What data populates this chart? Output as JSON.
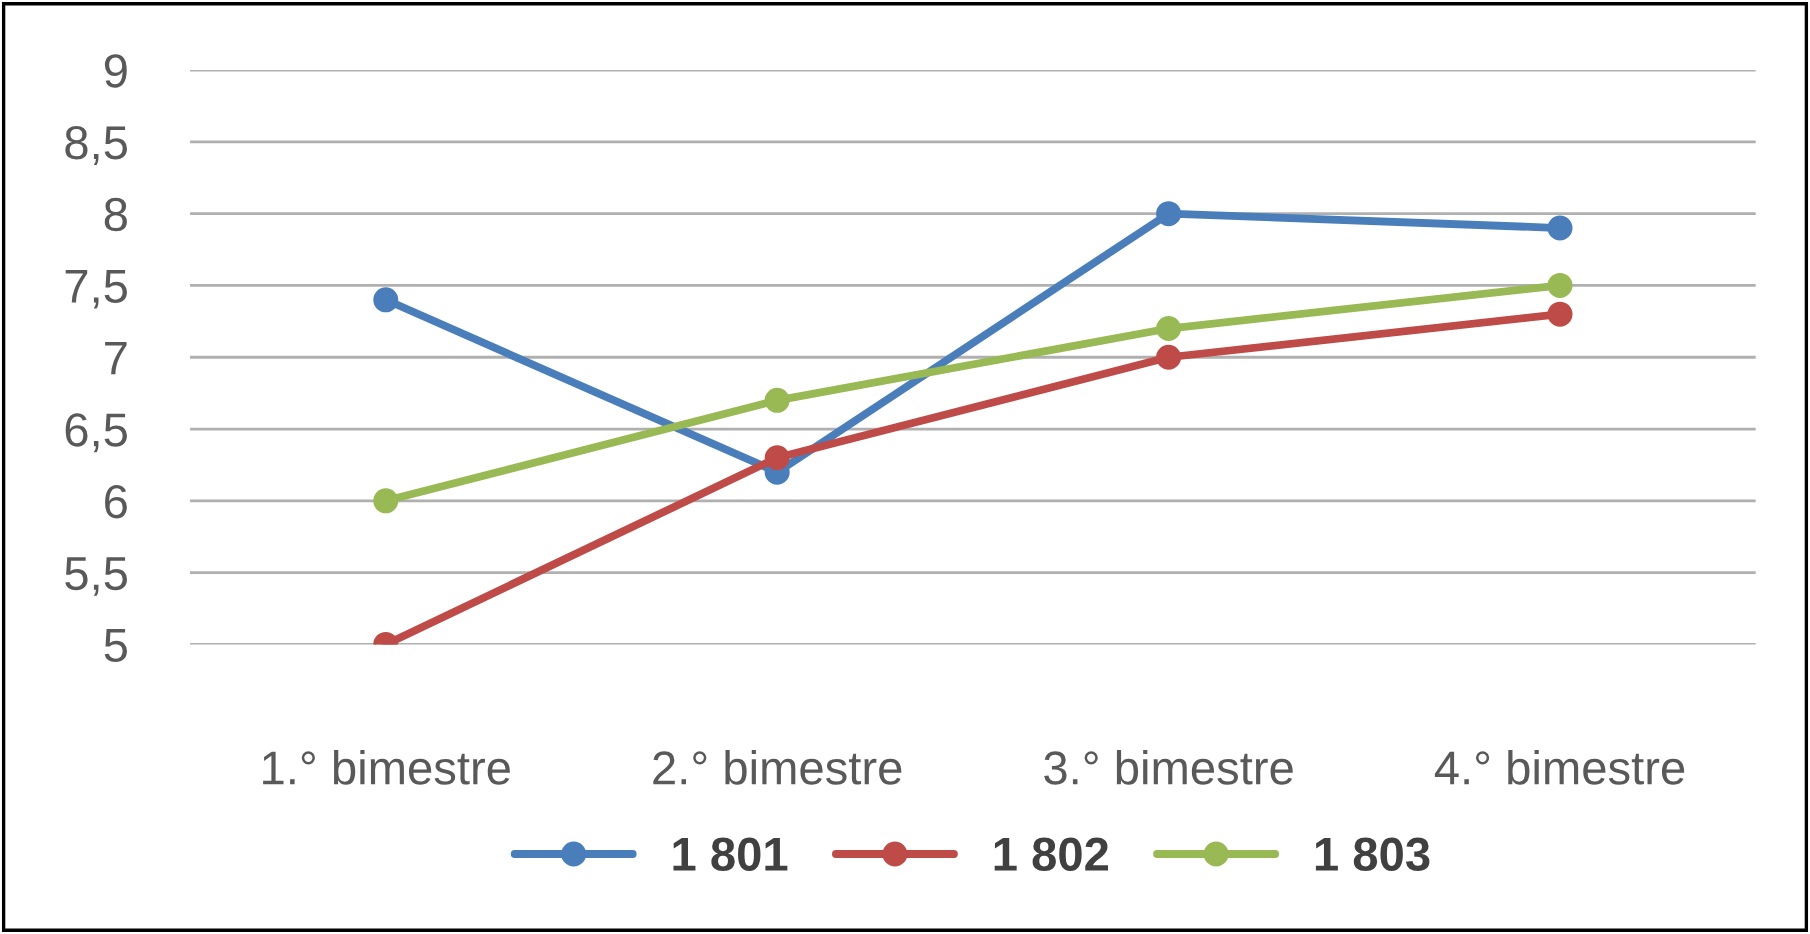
{
  "chart_data": {
    "type": "line",
    "categories": [
      "1.° bimestre",
      "2.° bimestre",
      "3.° bimestre",
      "4.° bimestre"
    ],
    "series": [
      {
        "name": "1 801",
        "color": "#4a7ebb",
        "values": [
          7.4,
          6.2,
          8.0,
          7.9
        ]
      },
      {
        "name": "1 802",
        "color": "#be4b48",
        "values": [
          5.0,
          6.3,
          7.0,
          7.3
        ]
      },
      {
        "name": "1 803",
        "color": "#98b954",
        "values": [
          6.0,
          6.7,
          7.2,
          7.5
        ]
      }
    ],
    "ylim": [
      5,
      9
    ],
    "yticks": [
      5,
      {
        "value": 5.5,
        "label": "5,5"
      },
      6,
      {
        "value": 6.5,
        "label": "6,5"
      },
      7,
      {
        "value": 7.5,
        "label": "7,5"
      },
      8,
      {
        "value": 8.5,
        "label": "8,5"
      },
      9
    ],
    "grid": "y",
    "legend": "bottom",
    "marker": "circle",
    "line_style": "solid"
  }
}
